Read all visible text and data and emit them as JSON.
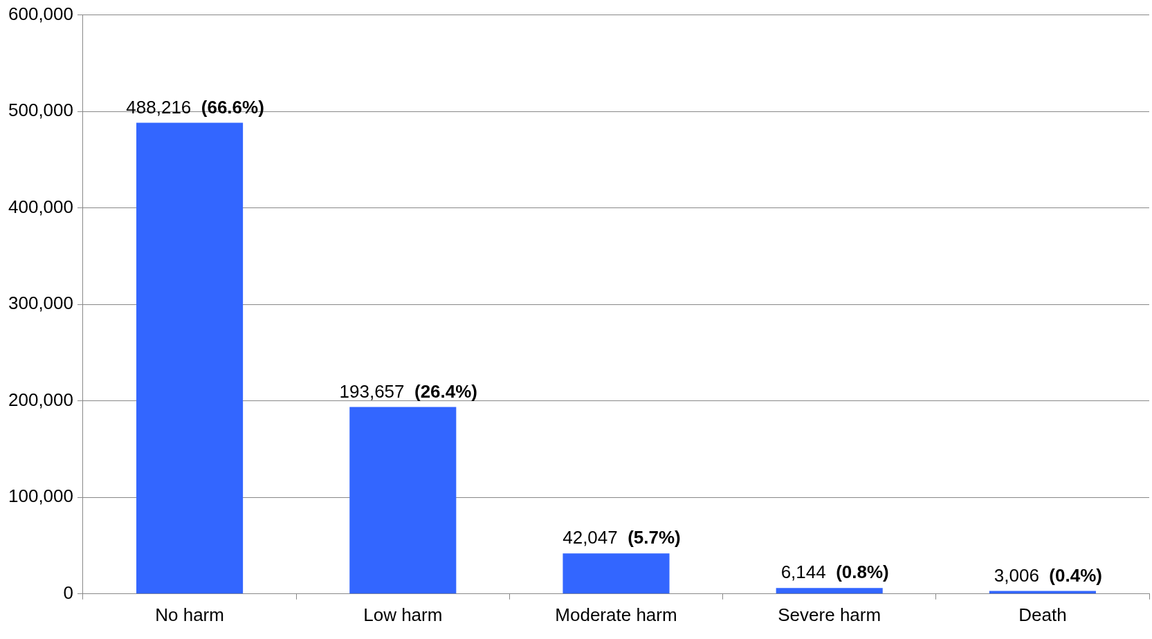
{
  "chart_data": {
    "type": "bar",
    "categories": [
      "No harm",
      "Low harm",
      "Moderate harm",
      "Severe harm",
      "Death"
    ],
    "values": [
      488216,
      193657,
      42047,
      6144,
      3006
    ],
    "value_labels": [
      "488,216 (66.6%)",
      "193,657 (26.4%)",
      "42,047 (5.7%)",
      "6,144 (0.8%)",
      "3,006 (0.4%)"
    ],
    "color": "#3366ff",
    "ylim": [
      0,
      600000
    ],
    "yticks": [
      {
        "value": 0,
        "label": "0"
      },
      {
        "value": 100000,
        "label": "100,000"
      },
      {
        "value": 200000,
        "label": "200,000"
      },
      {
        "value": 300000,
        "label": "300,000"
      },
      {
        "value": 400000,
        "label": "400,000"
      },
      {
        "value": 500000,
        "label": "500,000"
      },
      {
        "value": 600000,
        "label": "600,000"
      }
    ],
    "grid": "y",
    "legend": false
  }
}
